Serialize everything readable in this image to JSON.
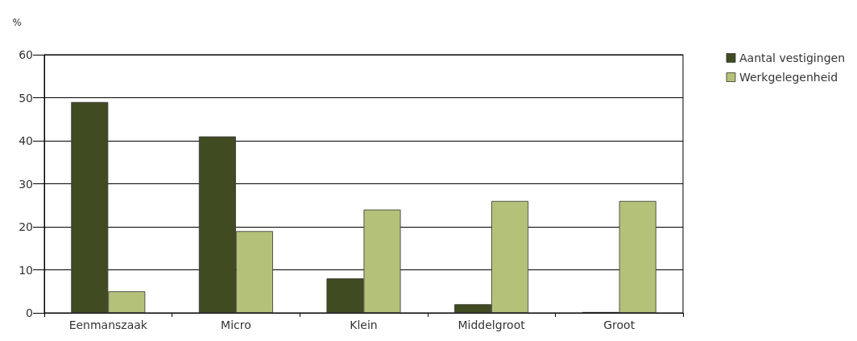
{
  "chart_data": {
    "type": "bar",
    "ylabel": "%",
    "categories": [
      "Eenmanszaak",
      "Micro",
      "Klein",
      "Middelgroot",
      "Groot"
    ],
    "series": [
      {
        "name": "Aantal vestigingen",
        "color": "#414b21",
        "values": [
          49,
          41,
          8,
          2,
          0.2
        ]
      },
      {
        "name": "Werkgelegenheid",
        "color": "#b4c178",
        "values": [
          5,
          19,
          24,
          26,
          26
        ]
      }
    ],
    "ylim": [
      0,
      60
    ],
    "yticks": [
      0,
      10,
      20,
      30,
      40,
      50,
      60
    ],
    "grid": "y",
    "legend": "right"
  }
}
